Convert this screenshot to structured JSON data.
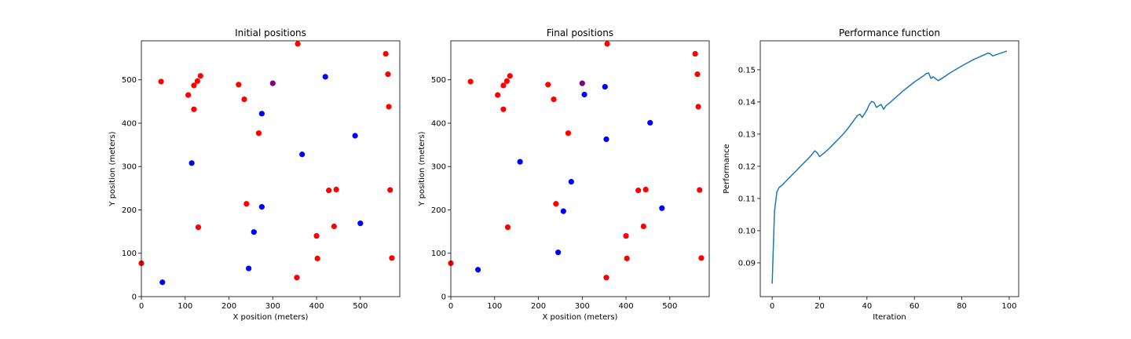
{
  "colors": {
    "red": "#ff0000",
    "blue": "#0000ff",
    "purple": "#800080",
    "line": "#1f77b4"
  },
  "chart_data": [
    {
      "type": "scatter",
      "title": "Initial positions",
      "xlabel": "X position (meters)",
      "ylabel": "Y position (meters)",
      "xlim": [
        0,
        590
      ],
      "ylim": [
        0,
        590
      ],
      "xticks": [
        0,
        100,
        200,
        300,
        400,
        500
      ],
      "yticks": [
        0,
        100,
        200,
        300,
        400,
        500
      ],
      "series": [
        {
          "color": "red",
          "points": [
            [
              0,
              77
            ],
            [
              45,
              496
            ],
            [
              107,
              465
            ],
            [
              120,
              432
            ],
            [
              120,
              487
            ],
            [
              128,
              497
            ],
            [
              135,
              509
            ],
            [
              130,
              160
            ],
            [
              222,
              489
            ],
            [
              235,
              455
            ],
            [
              240,
              214
            ],
            [
              268,
              377
            ],
            [
              355,
              44
            ],
            [
              357,
              583
            ],
            [
              400,
              140
            ],
            [
              402,
              88
            ],
            [
              428,
              245
            ],
            [
              440,
              162
            ],
            [
              445,
              247
            ],
            [
              558,
              560
            ],
            [
              563,
              513
            ],
            [
              565,
              438
            ],
            [
              568,
              246
            ],
            [
              572,
              89
            ]
          ]
        },
        {
          "color": "blue",
          "points": [
            [
              48,
              33
            ],
            [
              115,
              308
            ],
            [
              245,
              65
            ],
            [
              257,
              149
            ],
            [
              275,
              422
            ],
            [
              275,
              207
            ],
            [
              367,
              328
            ],
            [
              420,
              507
            ],
            [
              488,
              371
            ],
            [
              500,
              169
            ]
          ]
        },
        {
          "color": "purple",
          "points": [
            [
              300,
              492
            ]
          ]
        }
      ]
    },
    {
      "type": "scatter",
      "title": "Final positions",
      "xlabel": "X position (meters)",
      "ylabel": "Y position (meters)",
      "xlim": [
        0,
        590
      ],
      "ylim": [
        0,
        590
      ],
      "xticks": [
        0,
        100,
        200,
        300,
        400,
        500
      ],
      "yticks": [
        0,
        100,
        200,
        300,
        400,
        500
      ],
      "series": [
        {
          "color": "red",
          "points": [
            [
              0,
              77
            ],
            [
              45,
              496
            ],
            [
              107,
              465
            ],
            [
              120,
              432
            ],
            [
              120,
              487
            ],
            [
              128,
              497
            ],
            [
              135,
              509
            ],
            [
              130,
              160
            ],
            [
              222,
              489
            ],
            [
              235,
              455
            ],
            [
              240,
              214
            ],
            [
              268,
              377
            ],
            [
              355,
              44
            ],
            [
              357,
              583
            ],
            [
              400,
              140
            ],
            [
              402,
              88
            ],
            [
              428,
              245
            ],
            [
              440,
              162
            ],
            [
              445,
              247
            ],
            [
              558,
              560
            ],
            [
              563,
              513
            ],
            [
              565,
              438
            ],
            [
              568,
              246
            ],
            [
              572,
              89
            ]
          ]
        },
        {
          "color": "blue",
          "points": [
            [
              62,
              62
            ],
            [
              158,
              311
            ],
            [
              245,
              102
            ],
            [
              257,
              197
            ],
            [
              275,
              265
            ],
            [
              305,
              466
            ],
            [
              352,
              484
            ],
            [
              355,
              363
            ],
            [
              455,
              401
            ],
            [
              482,
              204
            ]
          ]
        },
        {
          "color": "purple",
          "points": [
            [
              300,
              492
            ]
          ]
        }
      ]
    },
    {
      "type": "line",
      "title": "Performance function",
      "xlabel": "Iteration",
      "ylabel": "Performance",
      "xlim": [
        -5,
        104
      ],
      "ylim": [
        0.0795,
        0.159
      ],
      "xticks": [
        0,
        20,
        40,
        60,
        80,
        100
      ],
      "yticks": [
        0.09,
        0.1,
        0.11,
        0.12,
        0.13,
        0.14,
        0.15
      ],
      "series": [
        {
          "color": "line",
          "x": [
            0,
            1,
            2,
            3,
            4,
            6,
            8,
            10,
            12,
            14,
            16,
            18,
            19,
            20,
            22,
            24,
            26,
            28,
            30,
            32,
            34,
            36,
            37,
            38,
            40,
            41,
            42,
            43,
            44,
            45,
            46,
            47,
            48,
            50,
            55,
            60,
            62,
            64,
            65,
            66,
            67,
            68,
            69,
            70,
            72,
            75,
            80,
            85,
            90,
            91,
            92,
            93,
            95,
            97,
            99
          ],
          "y": [
            0.0835,
            0.106,
            0.112,
            0.1135,
            0.114,
            0.1155,
            0.117,
            0.1185,
            0.12,
            0.1215,
            0.123,
            0.1248,
            0.1242,
            0.123,
            0.1242,
            0.1255,
            0.127,
            0.1285,
            0.13,
            0.1318,
            0.1338,
            0.1358,
            0.1362,
            0.1352,
            0.1375,
            0.1392,
            0.1402,
            0.1398,
            0.1383,
            0.1388,
            0.1392,
            0.1377,
            0.1388,
            0.14,
            0.1433,
            0.1462,
            0.1472,
            0.1482,
            0.1488,
            0.149,
            0.1473,
            0.1478,
            0.1472,
            0.1466,
            0.1475,
            0.149,
            0.1512,
            0.1532,
            0.1548,
            0.1552,
            0.155,
            0.1543,
            0.1548,
            0.1553,
            0.1558
          ]
        }
      ]
    }
  ]
}
